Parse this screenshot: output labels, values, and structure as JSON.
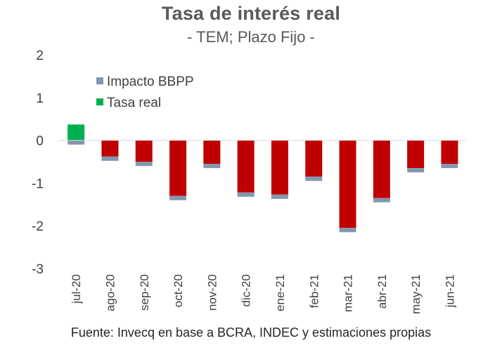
{
  "chart_data": {
    "type": "bar",
    "stacked": true,
    "title": "Tasa de interés real",
    "subtitle": "- TEM; Plazo Fijo -",
    "source": "Fuente: Invecq en base a BCRA, INDEC y estimaciones propias",
    "categories": [
      "jul-20",
      "ago-20",
      "sep-20",
      "oct-20",
      "nov-20",
      "dic-20",
      "ene-21",
      "feb-21",
      "mar-21",
      "abr-21",
      "may-21",
      "jun-21"
    ],
    "series": [
      {
        "name": "Impacto BBPP",
        "color": "#8497b0",
        "values": [
          -0.1,
          -0.1,
          -0.1,
          -0.1,
          -0.1,
          -0.1,
          -0.1,
          -0.1,
          -0.1,
          -0.1,
          -0.1,
          -0.1
        ]
      },
      {
        "name": "Tasa real",
        "color": "#00b050",
        "negative_color": "#c00000",
        "values": [
          0.37,
          -0.38,
          -0.5,
          -1.3,
          -0.55,
          -1.22,
          -1.27,
          -0.85,
          -2.05,
          -1.35,
          -0.65,
          -0.55
        ]
      }
    ],
    "ylim": [
      -3,
      2
    ],
    "yticks": [
      2,
      1,
      0,
      -1,
      -2,
      -3
    ],
    "grid": false,
    "legend": "top-left"
  }
}
